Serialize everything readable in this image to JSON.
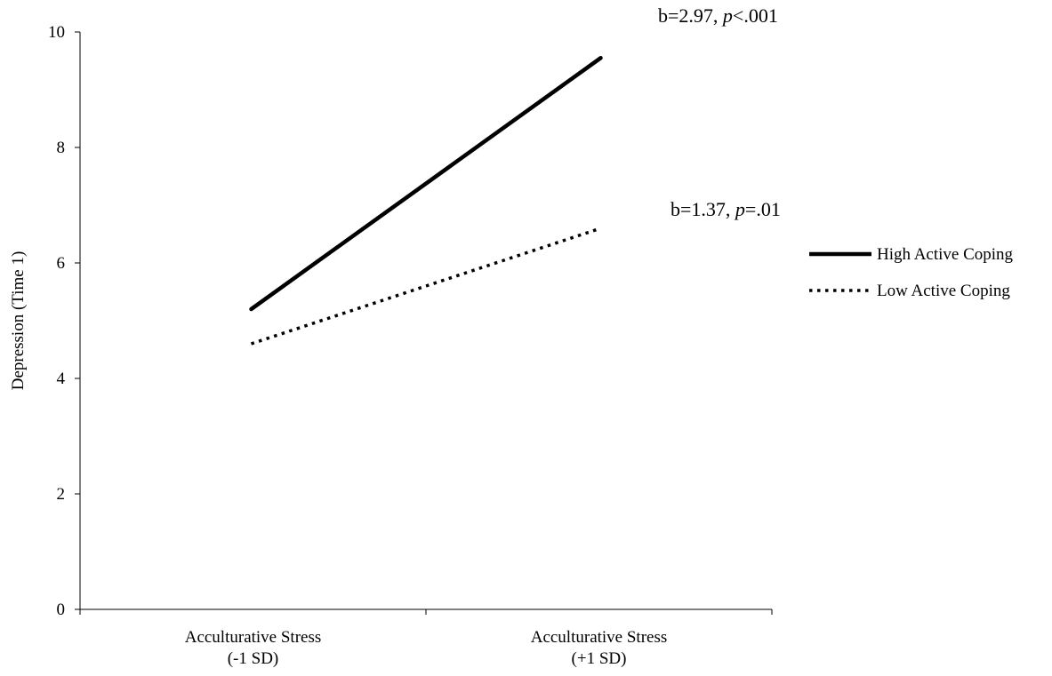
{
  "chart_data": {
    "type": "line",
    "title": "",
    "ylabel": "Depression (Time 1)",
    "xlabel": "",
    "ylim": [
      0,
      10
    ],
    "yticks": [
      0,
      2,
      4,
      6,
      8,
      10
    ],
    "grid": false,
    "legend_position": "right",
    "categories": [
      [
        "Acculturative Stress",
        "(-1 SD)"
      ],
      [
        "Acculturative Stress",
        "(+1 SD)"
      ]
    ],
    "series": [
      {
        "name": "High Active Coping",
        "values": [
          5.2,
          9.55
        ],
        "style": "solid",
        "color": "#000000",
        "annotation": {
          "prefix": "b=2.97, ",
          "italic": "p",
          "suffix": "<.001"
        }
      },
      {
        "name": "Low Active Coping",
        "values": [
          4.6,
          6.6
        ],
        "style": "dotted",
        "color": "#000000",
        "annotation": {
          "prefix": "b=1.37, ",
          "italic": "p",
          "suffix": "=.01"
        }
      }
    ]
  }
}
